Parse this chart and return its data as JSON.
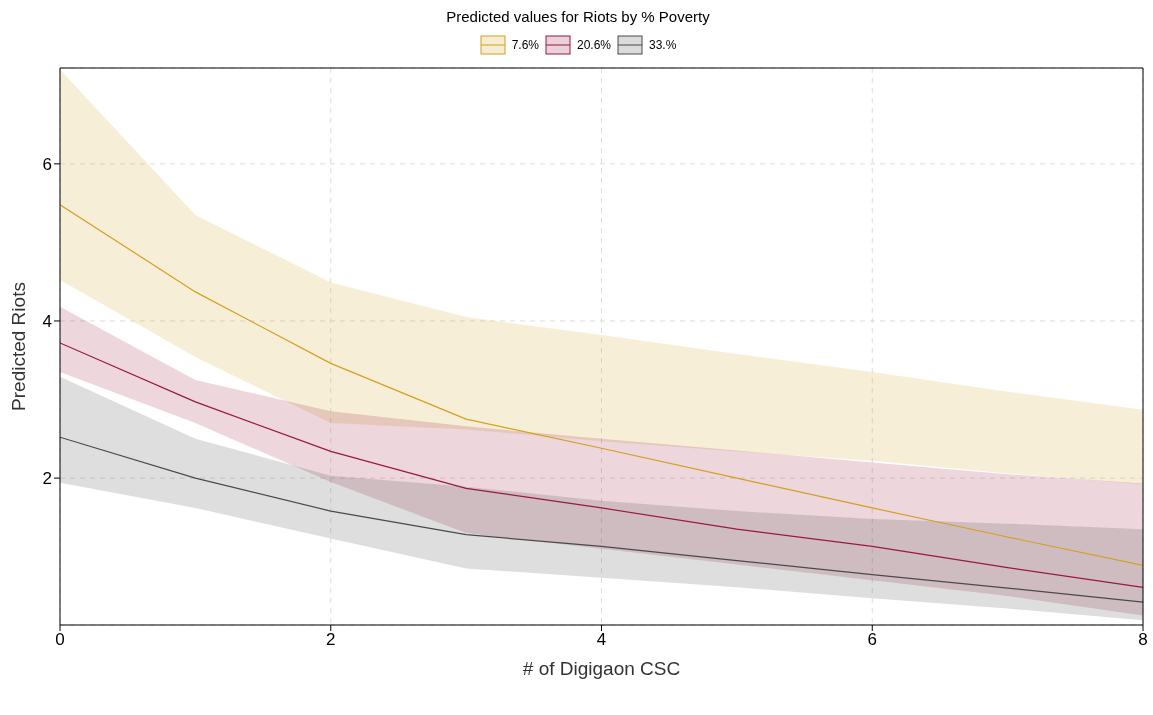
{
  "chart_data": {
    "type": "line",
    "title": "Predicted values for Riots by % Poverty",
    "xlabel": "# of Digigaon CSC",
    "ylabel": "Predicted Riots",
    "x": [
      0,
      1,
      2,
      3,
      4,
      5,
      6,
      7,
      8
    ],
    "xlim": [
      0,
      8
    ],
    "xticks": [
      0,
      2,
      4,
      6,
      8
    ],
    "ylim": [
      0.13,
      7.22
    ],
    "yticks": [
      2,
      4,
      6
    ],
    "grid": true,
    "legend": "top",
    "line_style": "solid",
    "marker": "none",
    "series": [
      {
        "name": "7.6%",
        "color": "#d4a020",
        "values": [
          5.48,
          4.37,
          3.46,
          2.75,
          2.38,
          2.0,
          1.62,
          1.25,
          0.89
        ],
        "lower": [
          4.52,
          3.54,
          2.7,
          2.62,
          2.47,
          2.34,
          2.22,
          2.06,
          1.92
        ],
        "upper": [
          7.2,
          5.35,
          4.49,
          4.05,
          3.82,
          3.58,
          3.35,
          3.1,
          2.87
        ]
      },
      {
        "name": "20.6%",
        "color": "#99193f",
        "values": [
          3.72,
          2.97,
          2.34,
          1.87,
          1.62,
          1.35,
          1.13,
          0.86,
          0.61
        ],
        "lower": [
          3.35,
          2.7,
          1.95,
          1.3,
          1.1,
          0.9,
          0.7,
          0.5,
          0.25
        ],
        "upper": [
          4.18,
          3.25,
          2.85,
          2.66,
          2.5,
          2.35,
          2.2,
          2.05,
          1.93
        ]
      },
      {
        "name": "33.%",
        "color": "#4a4a4a",
        "values": [
          2.52,
          2.0,
          1.58,
          1.28,
          1.13,
          0.95,
          0.77,
          0.6,
          0.42
        ],
        "lower": [
          1.94,
          1.62,
          1.23,
          0.85,
          0.73,
          0.61,
          0.47,
          0.34,
          0.19
        ],
        "upper": [
          3.29,
          2.5,
          2.03,
          1.89,
          1.71,
          1.58,
          1.48,
          1.42,
          1.35
        ]
      }
    ]
  }
}
